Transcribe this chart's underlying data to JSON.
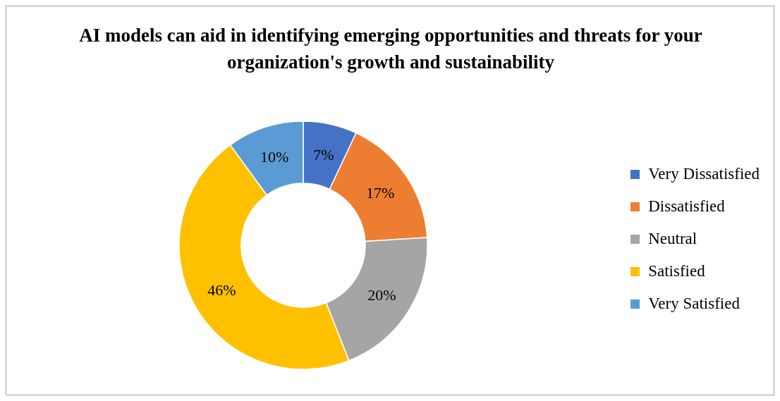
{
  "chart_data": {
    "type": "donut",
    "title": "AI models can aid in identifying emerging opportunities and threats for your organization's growth and sustainability",
    "categories": [
      "Very Dissatisfied",
      "Dissatisfied",
      "Neutral",
      "Satisfied",
      "Very Satisfied"
    ],
    "values": [
      7,
      17,
      20,
      46,
      10
    ],
    "colors": [
      "#4472c4",
      "#ed7d31",
      "#a5a5a5",
      "#ffc000",
      "#5b9bd5"
    ],
    "value_labels": [
      "7%",
      "17%",
      "20%",
      "46%",
      "10%"
    ],
    "legend": "right"
  }
}
